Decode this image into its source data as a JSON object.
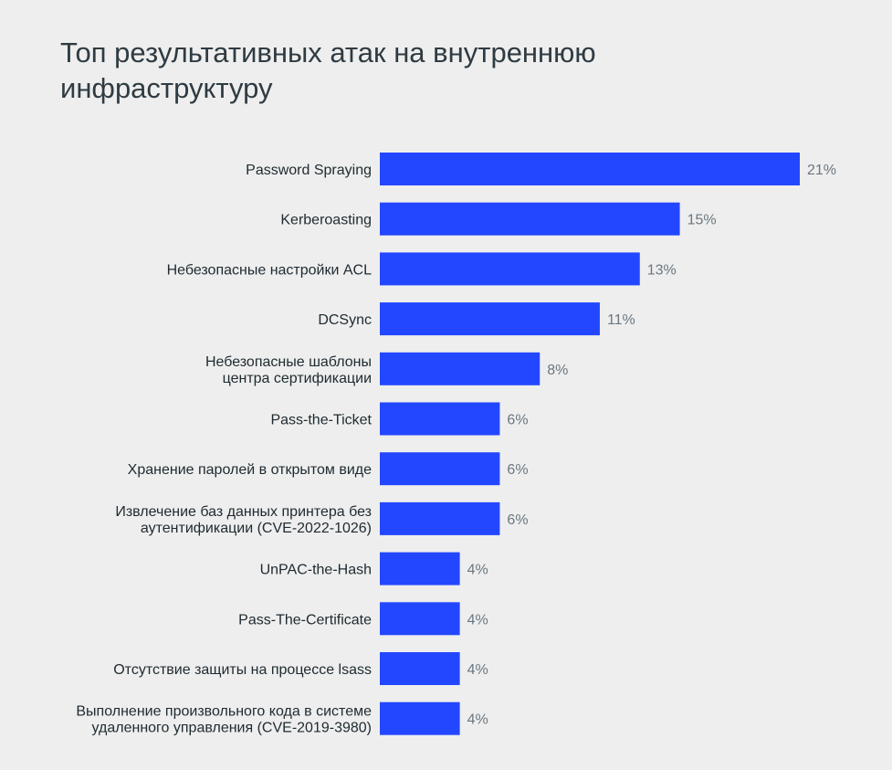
{
  "colors": {
    "bar": "#2347ff",
    "background": "#eeeeee",
    "value_text": "#6b7780",
    "label_text": "#1e2a30"
  },
  "chart_data": {
    "type": "bar",
    "orientation": "horizontal",
    "title": "Топ результативных атак на внутреннюю инфраструктуру",
    "xlabel": "",
    "ylabel": "",
    "value_suffix": "%",
    "xlim": [
      0,
      21
    ],
    "grid": false,
    "categories": [
      [
        "Password Spraying"
      ],
      [
        "Kerberoasting"
      ],
      [
        "Небезопасные настройки ACL"
      ],
      [
        "DCSync"
      ],
      [
        "Небезопасные шаблоны",
        "центра сертификации"
      ],
      [
        "Pass-the-Ticket"
      ],
      [
        "Хранение паролей в открытом виде"
      ],
      [
        "Извлечение баз данных принтера без",
        "аутентификации (CVE-2022-1026)"
      ],
      [
        "UnPAC-the-Hash"
      ],
      [
        "Pass-The-Certificate"
      ],
      [
        "Отсутствие защиты на процессе lsass"
      ],
      [
        "Выполнение произвольного кода в системе",
        "удаленного управления (CVE-2019-3980)"
      ]
    ],
    "values": [
      21,
      15,
      13,
      11,
      8,
      6,
      6,
      6,
      4,
      4,
      4,
      4
    ]
  }
}
